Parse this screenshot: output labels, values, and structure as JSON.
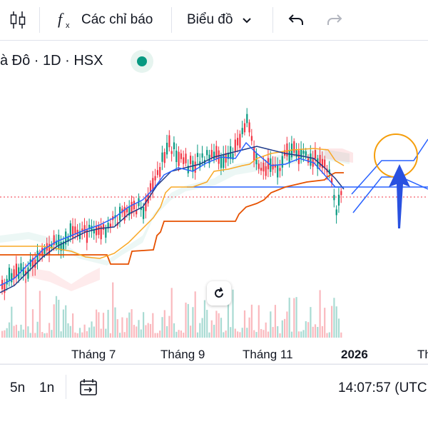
{
  "toolbar": {
    "indicators_label": "Các chỉ báo",
    "chart_label": "Biểu đồ"
  },
  "legend": {
    "symbol_text": "à Đô · 1D · HSX",
    "status_color": "#089981"
  },
  "x_axis": {
    "labels": [
      "Tháng 7",
      "Tháng 9",
      "Tháng 11",
      "2026",
      "Th"
    ]
  },
  "bottom_bar": {
    "range_5d": "5n",
    "range_1d": "1n",
    "clock": "14:07:57 (UTC"
  },
  "icons": [
    "candle-icon",
    "fx-icon",
    "chevron-down-icon",
    "undo-icon",
    "redo-icon",
    "goto-date-icon",
    "reset-icon",
    "arrow-up-icon"
  ],
  "colors": {
    "up": "#089981",
    "down": "#f23645",
    "ma_blue": "#2962ff",
    "ma_dark": "#1e3a8a",
    "orange": "#e65100",
    "yellow": "#f9a825",
    "highlight_circle": "#f59e0b",
    "arrow": "#2951e0"
  }
}
